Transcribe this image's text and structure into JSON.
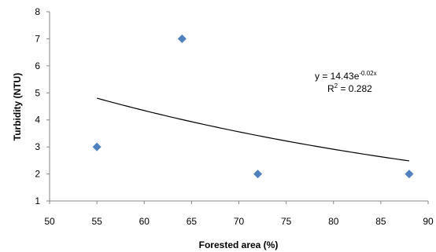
{
  "chart_data": {
    "type": "scatter",
    "xlabel": "Forested area (%)",
    "ylabel": "Turbidity (NTU)",
    "xlim": [
      50,
      90
    ],
    "ylim": [
      1,
      8
    ],
    "xticks": [
      "50",
      "55",
      "60",
      "65",
      "70",
      "75",
      "80",
      "85",
      "90"
    ],
    "yticks": [
      "1",
      "2",
      "3",
      "4",
      "5",
      "6",
      "7",
      "8"
    ],
    "grid": false,
    "legend": "none",
    "marker_color": "#4F81BD",
    "points": [
      {
        "x": 55,
        "y": 3
      },
      {
        "x": 64,
        "y": 7
      },
      {
        "x": 72,
        "y": 2
      },
      {
        "x": 88,
        "y": 2
      }
    ],
    "trendline": {
      "type": "exponential",
      "a": 14.43,
      "b": -0.02,
      "x_range": [
        55,
        88
      ],
      "color": "#000000",
      "equation_main": "y = 14.43e",
      "equation_exp": "-0.02x",
      "r2_main": "R",
      "r2_sup": "2",
      "r2_value": " = 0.282"
    }
  }
}
